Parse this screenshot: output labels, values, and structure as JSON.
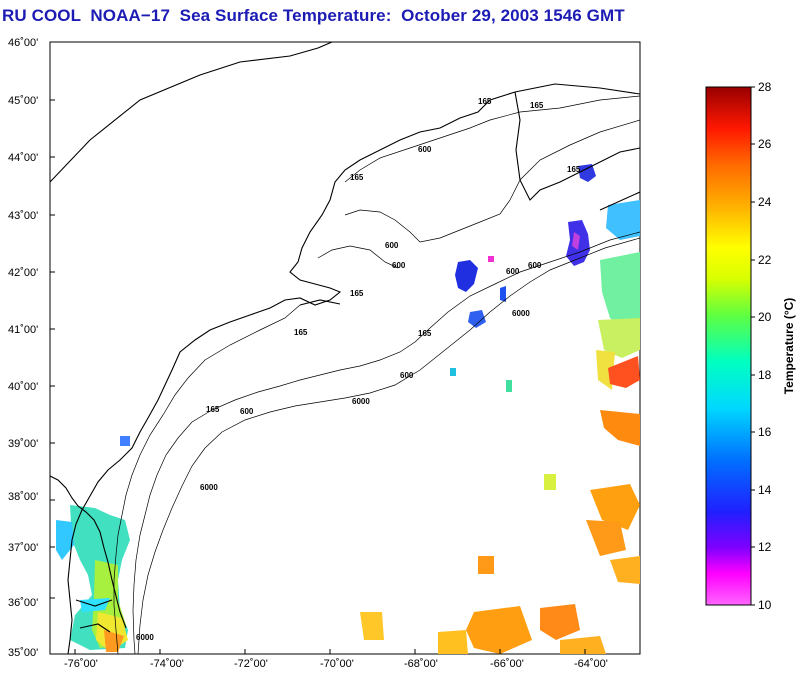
{
  "title": "RU COOL  NOAA−17  Sea Surface Temperature:  October 29, 2003 1546 GMT",
  "map": {
    "lat_labels": [
      "46˚00'",
      "45˚00'",
      "44˚00'",
      "43˚00'",
      "42˚00'",
      "41˚00'",
      "40˚00'",
      "39˚00'",
      "38˚00'",
      "37˚00'",
      "36˚00'",
      "35˚00'"
    ],
    "lon_labels": [
      "-76˚00'",
      "-74˚00'",
      "-72˚00'",
      "-70˚00'",
      "-68˚00'",
      "-66˚00'",
      "-64˚00'"
    ],
    "lat_range": [
      35,
      46
    ],
    "lon_range": [
      -77,
      -63.2
    ],
    "contour_labels": [
      "165",
      "165",
      "165",
      "165",
      "165",
      "165",
      "165",
      "600",
      "600",
      "600",
      "600",
      "600",
      "600",
      "600",
      "6000",
      "6000",
      "6000",
      "6000"
    ]
  },
  "colorbar": {
    "title": "Temperature (°C)",
    "ticks": [
      "28",
      "26",
      "24",
      "22",
      "20",
      "18",
      "16",
      "14",
      "12",
      "10"
    ],
    "range": [
      10,
      28
    ],
    "colors": [
      "#ff44ff",
      "#ff00ff",
      "#8c00ff",
      "#2828ff",
      "#0050ff",
      "#00c8ff",
      "#00ffd0",
      "#00ff80",
      "#80ff00",
      "#e0ff00",
      "#ffff00",
      "#ffb000",
      "#ff7800",
      "#ff3c00",
      "#dc0000",
      "#a00000"
    ]
  }
}
